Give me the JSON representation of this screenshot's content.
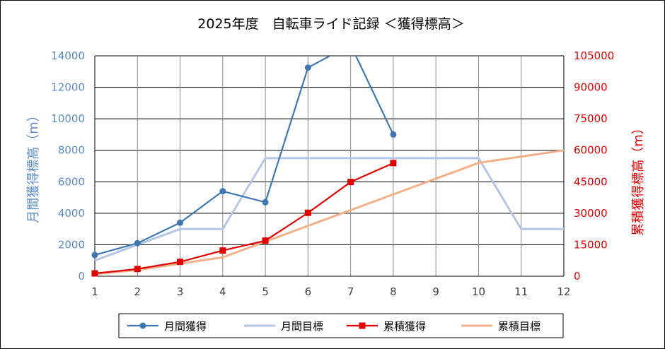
{
  "chart_data": {
    "type": "line",
    "title": "2025年度　自転車ライド記録 ＜獲得標高＞",
    "ylabel_left": "月間獲得標高（m）",
    "ylabel_right": "累積獲得標高（m）",
    "x": [
      1,
      2,
      3,
      4,
      5,
      6,
      7,
      8,
      9,
      10,
      11,
      12
    ],
    "ylim_left": [
      0,
      14000
    ],
    "ylim_right": [
      0,
      105000
    ],
    "yticks_left": [
      "0",
      "2000",
      "4000",
      "6000",
      "8000",
      "10000",
      "12000",
      "14000"
    ],
    "yticks_right": [
      "0",
      "15000",
      "30000",
      "45000",
      "60000",
      "75000",
      "90000",
      "105000"
    ],
    "xticks": [
      "1",
      "2",
      "3",
      "4",
      "5",
      "6",
      "7",
      "8",
      "9",
      "10",
      "11",
      "12"
    ],
    "grid": true,
    "legend_position": "bottom",
    "series": [
      {
        "name": "月間獲得",
        "axis": "left",
        "color": "#3e78b2",
        "marker": "circle",
        "x": [
          1,
          2,
          3,
          4,
          5,
          6,
          7,
          8
        ],
        "values": [
          1350,
          2100,
          3400,
          5400,
          4700,
          13250,
          14700,
          9000
        ]
      },
      {
        "name": "月間目標",
        "axis": "left",
        "color": "#b4c6e4",
        "marker": "none",
        "x": [
          1,
          2,
          3,
          4,
          5,
          6,
          7,
          8,
          9,
          10,
          11,
          12
        ],
        "values": [
          1000,
          2000,
          3000,
          3000,
          7500,
          7500,
          7500,
          7500,
          7500,
          7500,
          3000,
          3000
        ]
      },
      {
        "name": "累積獲得",
        "axis": "right",
        "color": "#e00000",
        "marker": "square",
        "x": [
          1,
          2,
          3,
          4,
          5,
          6,
          7,
          8
        ],
        "values": [
          1350,
          3450,
          6850,
          12250,
          16950,
          30200,
          44900,
          53900
        ]
      },
      {
        "name": "累積目標",
        "axis": "right",
        "color": "#f2b08a",
        "marker": "none",
        "x": [
          1,
          2,
          3,
          4,
          5,
          6,
          7,
          8,
          9,
          10,
          11,
          12
        ],
        "values": [
          1000,
          3000,
          6000,
          9000,
          16500,
          24000,
          31500,
          39000,
          46500,
          54000,
          57000,
          60000
        ]
      }
    ]
  }
}
